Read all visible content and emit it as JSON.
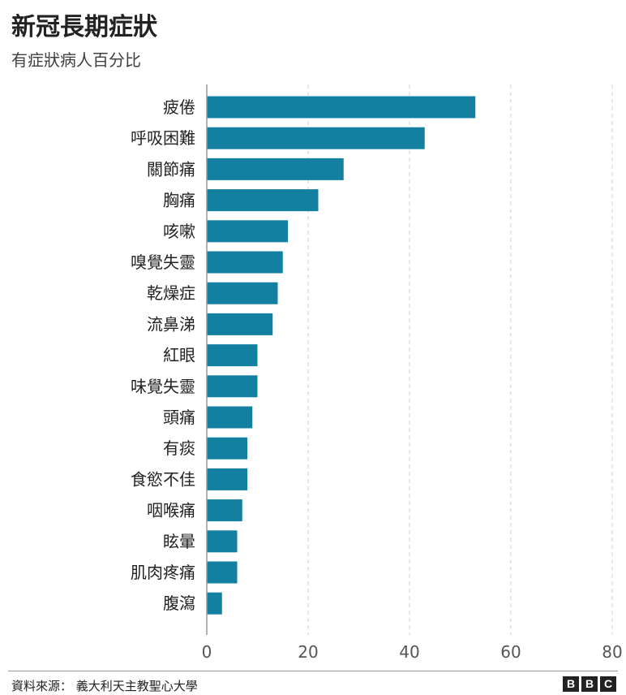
{
  "header": {
    "title": "新冠長期症狀",
    "subtitle": "有症狀病人百分比"
  },
  "footer": {
    "source": "資料來源：  義大利天主教聖心大學",
    "logo_letters": [
      "B",
      "B",
      "C"
    ]
  },
  "chart_data": {
    "type": "bar",
    "orientation": "horizontal",
    "title": "新冠長期症狀",
    "subtitle": "有症狀病人百分比",
    "categories": [
      "疲倦",
      "呼吸困難",
      "關節痛",
      "胸痛",
      "咳嗽",
      "嗅覺失靈",
      "乾燥症",
      "流鼻涕",
      "紅眼",
      "味覺失靈",
      "頭痛",
      "有痰",
      "食慾不佳",
      "咽喉痛",
      "眩暈",
      "肌肉疼痛",
      "腹瀉"
    ],
    "values": [
      53,
      43,
      27,
      22,
      16,
      15,
      14,
      13,
      10,
      10,
      9,
      8,
      8,
      7,
      6,
      6,
      3
    ],
    "xlim": [
      0,
      80
    ],
    "xticks": [
      0,
      20,
      40,
      60,
      80
    ],
    "bar_color": "#1380A1",
    "grid": true
  }
}
